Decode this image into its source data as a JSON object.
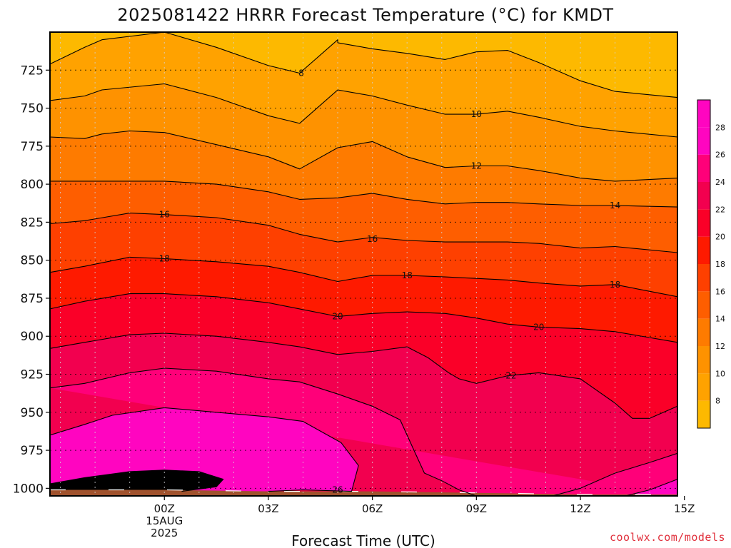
{
  "title": "2025081422 HRRR Forecast Temperature (°C) for KMDT",
  "credit": "coolwx.com/models",
  "chart_data": {
    "type": "contour",
    "title": "2025081422 HRRR Forecast Temperature (°C) for KMDT",
    "xlabel": "Forecast Time (UTC)",
    "ylabel": "",
    "x_hours_range": [
      -3.3,
      14.8
    ],
    "y_pressure_range": [
      700,
      1005
    ],
    "y_reversed": true,
    "y_ticks": [
      725,
      750,
      775,
      800,
      825,
      850,
      875,
      900,
      925,
      950,
      975,
      1000
    ],
    "x_ticks": [
      {
        "hour": 0,
        "lines": [
          "00Z",
          "15AUG",
          "2025"
        ]
      },
      {
        "hour": 3,
        "lines": [
          "03Z"
        ]
      },
      {
        "hour": 6,
        "lines": [
          "06Z"
        ]
      },
      {
        "hour": 9,
        "lines": [
          "09Z"
        ]
      },
      {
        "hour": 12,
        "lines": [
          "12Z"
        ]
      },
      {
        "hour": 15,
        "lines": [
          "15Z"
        ]
      }
    ],
    "grid": true,
    "legend": "colorbar-right",
    "colorbar_ticks": [
      8,
      10,
      12,
      14,
      16,
      18,
      20,
      22,
      24,
      26,
      28
    ],
    "colorbar_range": [
      6,
      30
    ],
    "levels": [
      8,
      10,
      12,
      14,
      16,
      18,
      20,
      22,
      24,
      26,
      28
    ],
    "colors": {
      "lt6": "#fdb900",
      "6": "#fdb900",
      "8": "#ffa200",
      "10": "#fe9200",
      "12": "#fe7b00",
      "14": "#fe5e00",
      "16": "#fe4000",
      "18": "#fe1a00",
      "20": "#fa0028",
      "22": "#f2004f",
      "24": "#ff0079",
      "26": "#ff05c0",
      "terrain": "#a0522d",
      "contour": "#000000",
      "grid": "#9aa0a6",
      "gridh": "#000000"
    },
    "contours": [
      {
        "level": 8,
        "points": [
          [
            -3.3,
            721
          ],
          [
            -2.3,
            710
          ],
          [
            -1.8,
            705
          ],
          [
            0,
            698
          ],
          [
            1.5,
            710
          ],
          [
            3,
            722
          ],
          [
            3.9,
            727
          ],
          [
            5,
            705
          ],
          [
            5,
            707
          ],
          [
            6,
            711
          ],
          [
            7,
            714
          ],
          [
            8.1,
            718
          ],
          [
            9,
            713
          ],
          [
            9.9,
            712
          ],
          [
            10.8,
            720
          ],
          [
            12,
            732
          ],
          [
            13,
            739
          ],
          [
            14.8,
            743
          ]
        ]
      },
      {
        "level": 10,
        "points": [
          [
            -3.3,
            745
          ],
          [
            -2.3,
            742
          ],
          [
            -1.8,
            738
          ],
          [
            0,
            734
          ],
          [
            1.5,
            743
          ],
          [
            3,
            755
          ],
          [
            3.9,
            760
          ],
          [
            5,
            738
          ],
          [
            6,
            742
          ],
          [
            7,
            748
          ],
          [
            8.1,
            754
          ],
          [
            9,
            754
          ],
          [
            9.9,
            752
          ],
          [
            10.8,
            756
          ],
          [
            12,
            762
          ],
          [
            13,
            765
          ],
          [
            14.8,
            769
          ]
        ]
      },
      {
        "level": 12,
        "points": [
          [
            -3.3,
            769
          ],
          [
            -2.3,
            770
          ],
          [
            -1.8,
            767
          ],
          [
            -1,
            765
          ],
          [
            0,
            766
          ],
          [
            1.5,
            774
          ],
          [
            3,
            782
          ],
          [
            3.9,
            790
          ],
          [
            5,
            776
          ],
          [
            6,
            772
          ],
          [
            7,
            782
          ],
          [
            8.1,
            789
          ],
          [
            9,
            788
          ],
          [
            9.9,
            788
          ],
          [
            10.8,
            791
          ],
          [
            12,
            796
          ],
          [
            13,
            798
          ],
          [
            14.8,
            796
          ]
        ]
      },
      {
        "level": 14,
        "points": [
          [
            -3.3,
            798
          ],
          [
            -2.3,
            798
          ],
          [
            -1,
            798
          ],
          [
            0,
            798
          ],
          [
            1.5,
            800
          ],
          [
            3,
            805
          ],
          [
            3.9,
            810
          ],
          [
            5,
            809
          ],
          [
            6,
            806
          ],
          [
            7,
            810
          ],
          [
            8.1,
            813
          ],
          [
            9,
            812
          ],
          [
            9.9,
            812
          ],
          [
            10.8,
            813
          ],
          [
            12,
            814
          ],
          [
            13,
            814
          ],
          [
            14.8,
            815
          ]
        ]
      },
      {
        "level": 16,
        "points": [
          [
            -3.3,
            826
          ],
          [
            -2.3,
            824
          ],
          [
            -1,
            819
          ],
          [
            0,
            820
          ],
          [
            1.5,
            822
          ],
          [
            3,
            827
          ],
          [
            3.9,
            833
          ],
          [
            5,
            838
          ],
          [
            6,
            835
          ],
          [
            7,
            837
          ],
          [
            8.1,
            838
          ],
          [
            9,
            838
          ],
          [
            9.9,
            838
          ],
          [
            10.8,
            839
          ],
          [
            12,
            842
          ],
          [
            13,
            841
          ],
          [
            14.8,
            845
          ]
        ]
      },
      {
        "level": 18,
        "points": [
          [
            -3.3,
            858
          ],
          [
            -2.3,
            854
          ],
          [
            -1,
            848
          ],
          [
            0,
            849
          ],
          [
            1.5,
            851
          ],
          [
            3,
            854
          ],
          [
            3.9,
            858
          ],
          [
            5,
            864
          ],
          [
            6,
            860
          ],
          [
            7,
            860
          ],
          [
            8.1,
            861
          ],
          [
            9,
            862
          ],
          [
            9.9,
            863
          ],
          [
            10.8,
            865
          ],
          [
            12,
            867
          ],
          [
            13,
            866
          ],
          [
            14.8,
            874
          ]
        ]
      },
      {
        "level": 20,
        "points": [
          [
            -3.3,
            882
          ],
          [
            -2.3,
            877
          ],
          [
            -1,
            872
          ],
          [
            0,
            872
          ],
          [
            1.5,
            874
          ],
          [
            3,
            878
          ],
          [
            3.9,
            882
          ],
          [
            5,
            887
          ],
          [
            6,
            885
          ],
          [
            7,
            884
          ],
          [
            8.1,
            885
          ],
          [
            9,
            888
          ],
          [
            9.9,
            892
          ],
          [
            10.8,
            894
          ],
          [
            12,
            895
          ],
          [
            13,
            897
          ],
          [
            14.8,
            904
          ]
        ]
      },
      {
        "level": 22,
        "points": [
          [
            -3.3,
            908
          ],
          [
            -2.3,
            904
          ],
          [
            -1,
            899
          ],
          [
            0,
            898
          ],
          [
            1.5,
            900
          ],
          [
            3,
            904
          ],
          [
            3.9,
            907
          ],
          [
            5,
            912
          ],
          [
            6,
            910
          ],
          [
            7,
            907
          ],
          [
            7.6,
            914
          ],
          [
            8.2,
            924
          ],
          [
            8.5,
            928
          ],
          [
            9,
            931
          ],
          [
            9.9,
            926
          ],
          [
            10.8,
            924
          ],
          [
            12,
            928
          ],
          [
            13,
            944
          ],
          [
            13.5,
            954
          ],
          [
            14,
            954
          ],
          [
            14.8,
            946
          ],
          [
            15,
            946
          ]
        ]
      },
      {
        "level": 24,
        "points": [
          [
            -3.3,
            934
          ],
          [
            -2.3,
            931
          ],
          [
            -1,
            924
          ],
          [
            0,
            921
          ],
          [
            1.5,
            923
          ],
          [
            3,
            928
          ],
          [
            3.9,
            930
          ],
          [
            5,
            938
          ],
          [
            6,
            946
          ],
          [
            6.8,
            955
          ],
          [
            7.2,
            975
          ],
          [
            7.5,
            990
          ],
          [
            8,
            995
          ],
          [
            8.5,
            1001
          ],
          [
            9,
            1005
          ]
        ]
      },
      {
        "level": 24,
        "points": [
          [
            11.2,
            1005
          ],
          [
            12,
            1000
          ],
          [
            13,
            990
          ],
          [
            14,
            983
          ],
          [
            14.8,
            977
          ],
          [
            15,
            976
          ]
        ]
      },
      {
        "level": 26,
        "points": [
          [
            -3.3,
            965
          ],
          [
            -2.3,
            958
          ],
          [
            -1.5,
            952
          ],
          [
            0,
            947
          ],
          [
            1.5,
            950
          ],
          [
            3,
            953
          ],
          [
            4,
            956
          ],
          [
            5.1,
            970
          ],
          [
            5.6,
            985
          ],
          [
            5.4,
            1002
          ],
          [
            4,
            1001
          ],
          [
            3,
            1002
          ]
        ]
      },
      {
        "level": 26,
        "points": [
          [
            13.3,
            1005
          ],
          [
            14,
            1001
          ],
          [
            14.8,
            994
          ],
          [
            15,
            993
          ]
        ]
      },
      {
        "level": 28,
        "points": [
          [
            -3.3,
            997
          ],
          [
            -2.3,
            993
          ],
          [
            -1,
            989
          ],
          [
            0,
            988
          ],
          [
            1,
            989
          ],
          [
            1.7,
            994
          ],
          [
            1.5,
            999
          ],
          [
            0.5,
            1002
          ]
        ]
      }
    ],
    "contour_labels": [
      {
        "value": 8,
        "hour": 3.95,
        "p": 727
      },
      {
        "value": 10,
        "hour": 9.0,
        "p": 754
      },
      {
        "value": 12,
        "hour": 9.0,
        "p": 788
      },
      {
        "value": 14,
        "hour": 13.0,
        "p": 814
      },
      {
        "value": 16,
        "hour": 0.0,
        "p": 820
      },
      {
        "value": 16,
        "hour": 6.0,
        "p": 836
      },
      {
        "value": 18,
        "hour": 0.0,
        "p": 849
      },
      {
        "value": 18,
        "hour": 7.0,
        "p": 860
      },
      {
        "value": 18,
        "hour": 13.0,
        "p": 866
      },
      {
        "value": 20,
        "hour": 5.0,
        "p": 887
      },
      {
        "value": 20,
        "hour": 10.8,
        "p": 894
      },
      {
        "value": 22,
        "hour": 10.0,
        "p": 926
      },
      {
        "value": 26,
        "hour": 5.0,
        "p": 1001
      }
    ],
    "terrain_surface": [
      [
        -3.3,
        1001
      ],
      [
        0,
        1001
      ],
      [
        3,
        1002
      ],
      [
        6,
        1002
      ],
      [
        9,
        1003
      ],
      [
        12,
        1004
      ],
      [
        14.8,
        1004
      ]
    ]
  }
}
